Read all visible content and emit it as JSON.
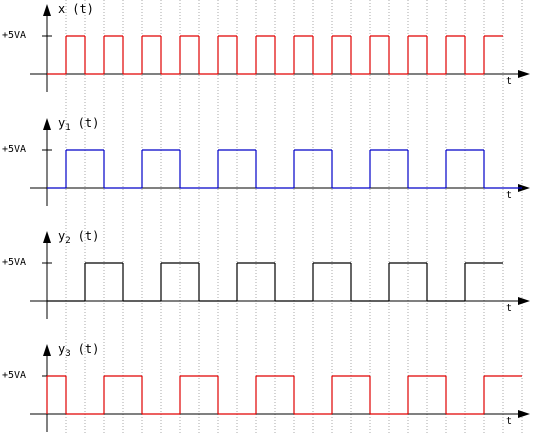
{
  "panels": [
    {
      "label": {
        "name": "x",
        "suffix": "(t)"
      },
      "level_label": "+5VA",
      "axis_label": "t",
      "color": "#e00000",
      "levels": [
        0,
        1,
        0,
        1,
        0,
        1,
        0,
        1,
        0,
        1,
        0,
        1,
        0,
        1,
        0,
        1,
        0,
        1,
        0,
        1,
        0,
        1,
        0,
        1
      ]
    },
    {
      "label": {
        "name": "y",
        "subscript": "1",
        "suffix": "(t)"
      },
      "level_label": "+5VA",
      "axis_label": "t",
      "color": "#0000c8",
      "levels": [
        0,
        1,
        1,
        0,
        0,
        1,
        1,
        0,
        0,
        1,
        1,
        0,
        0,
        1,
        1,
        0,
        0,
        1,
        1,
        0,
        0,
        1,
        1,
        0,
        0
      ]
    },
    {
      "label": {
        "name": "y",
        "subscript": "2",
        "suffix": "(t)"
      },
      "level_label": "+5VA",
      "axis_label": "t",
      "color": "#000000",
      "levels": [
        0,
        0,
        1,
        1,
        0,
        0,
        1,
        1,
        0,
        0,
        1,
        1,
        0,
        0,
        1,
        1,
        0,
        0,
        1,
        1,
        0,
        0,
        1,
        1
      ]
    },
    {
      "label": {
        "name": "y",
        "subscript": "3",
        "suffix": "(t)"
      },
      "level_label": "+5VA",
      "axis_label": "t",
      "color": "#e00000",
      "levels": [
        1,
        0,
        0,
        1,
        1,
        0,
        0,
        1,
        1,
        0,
        0,
        1,
        1,
        0,
        0,
        1,
        1,
        0,
        0,
        1,
        1,
        0,
        0,
        1,
        1
      ]
    }
  ]
}
